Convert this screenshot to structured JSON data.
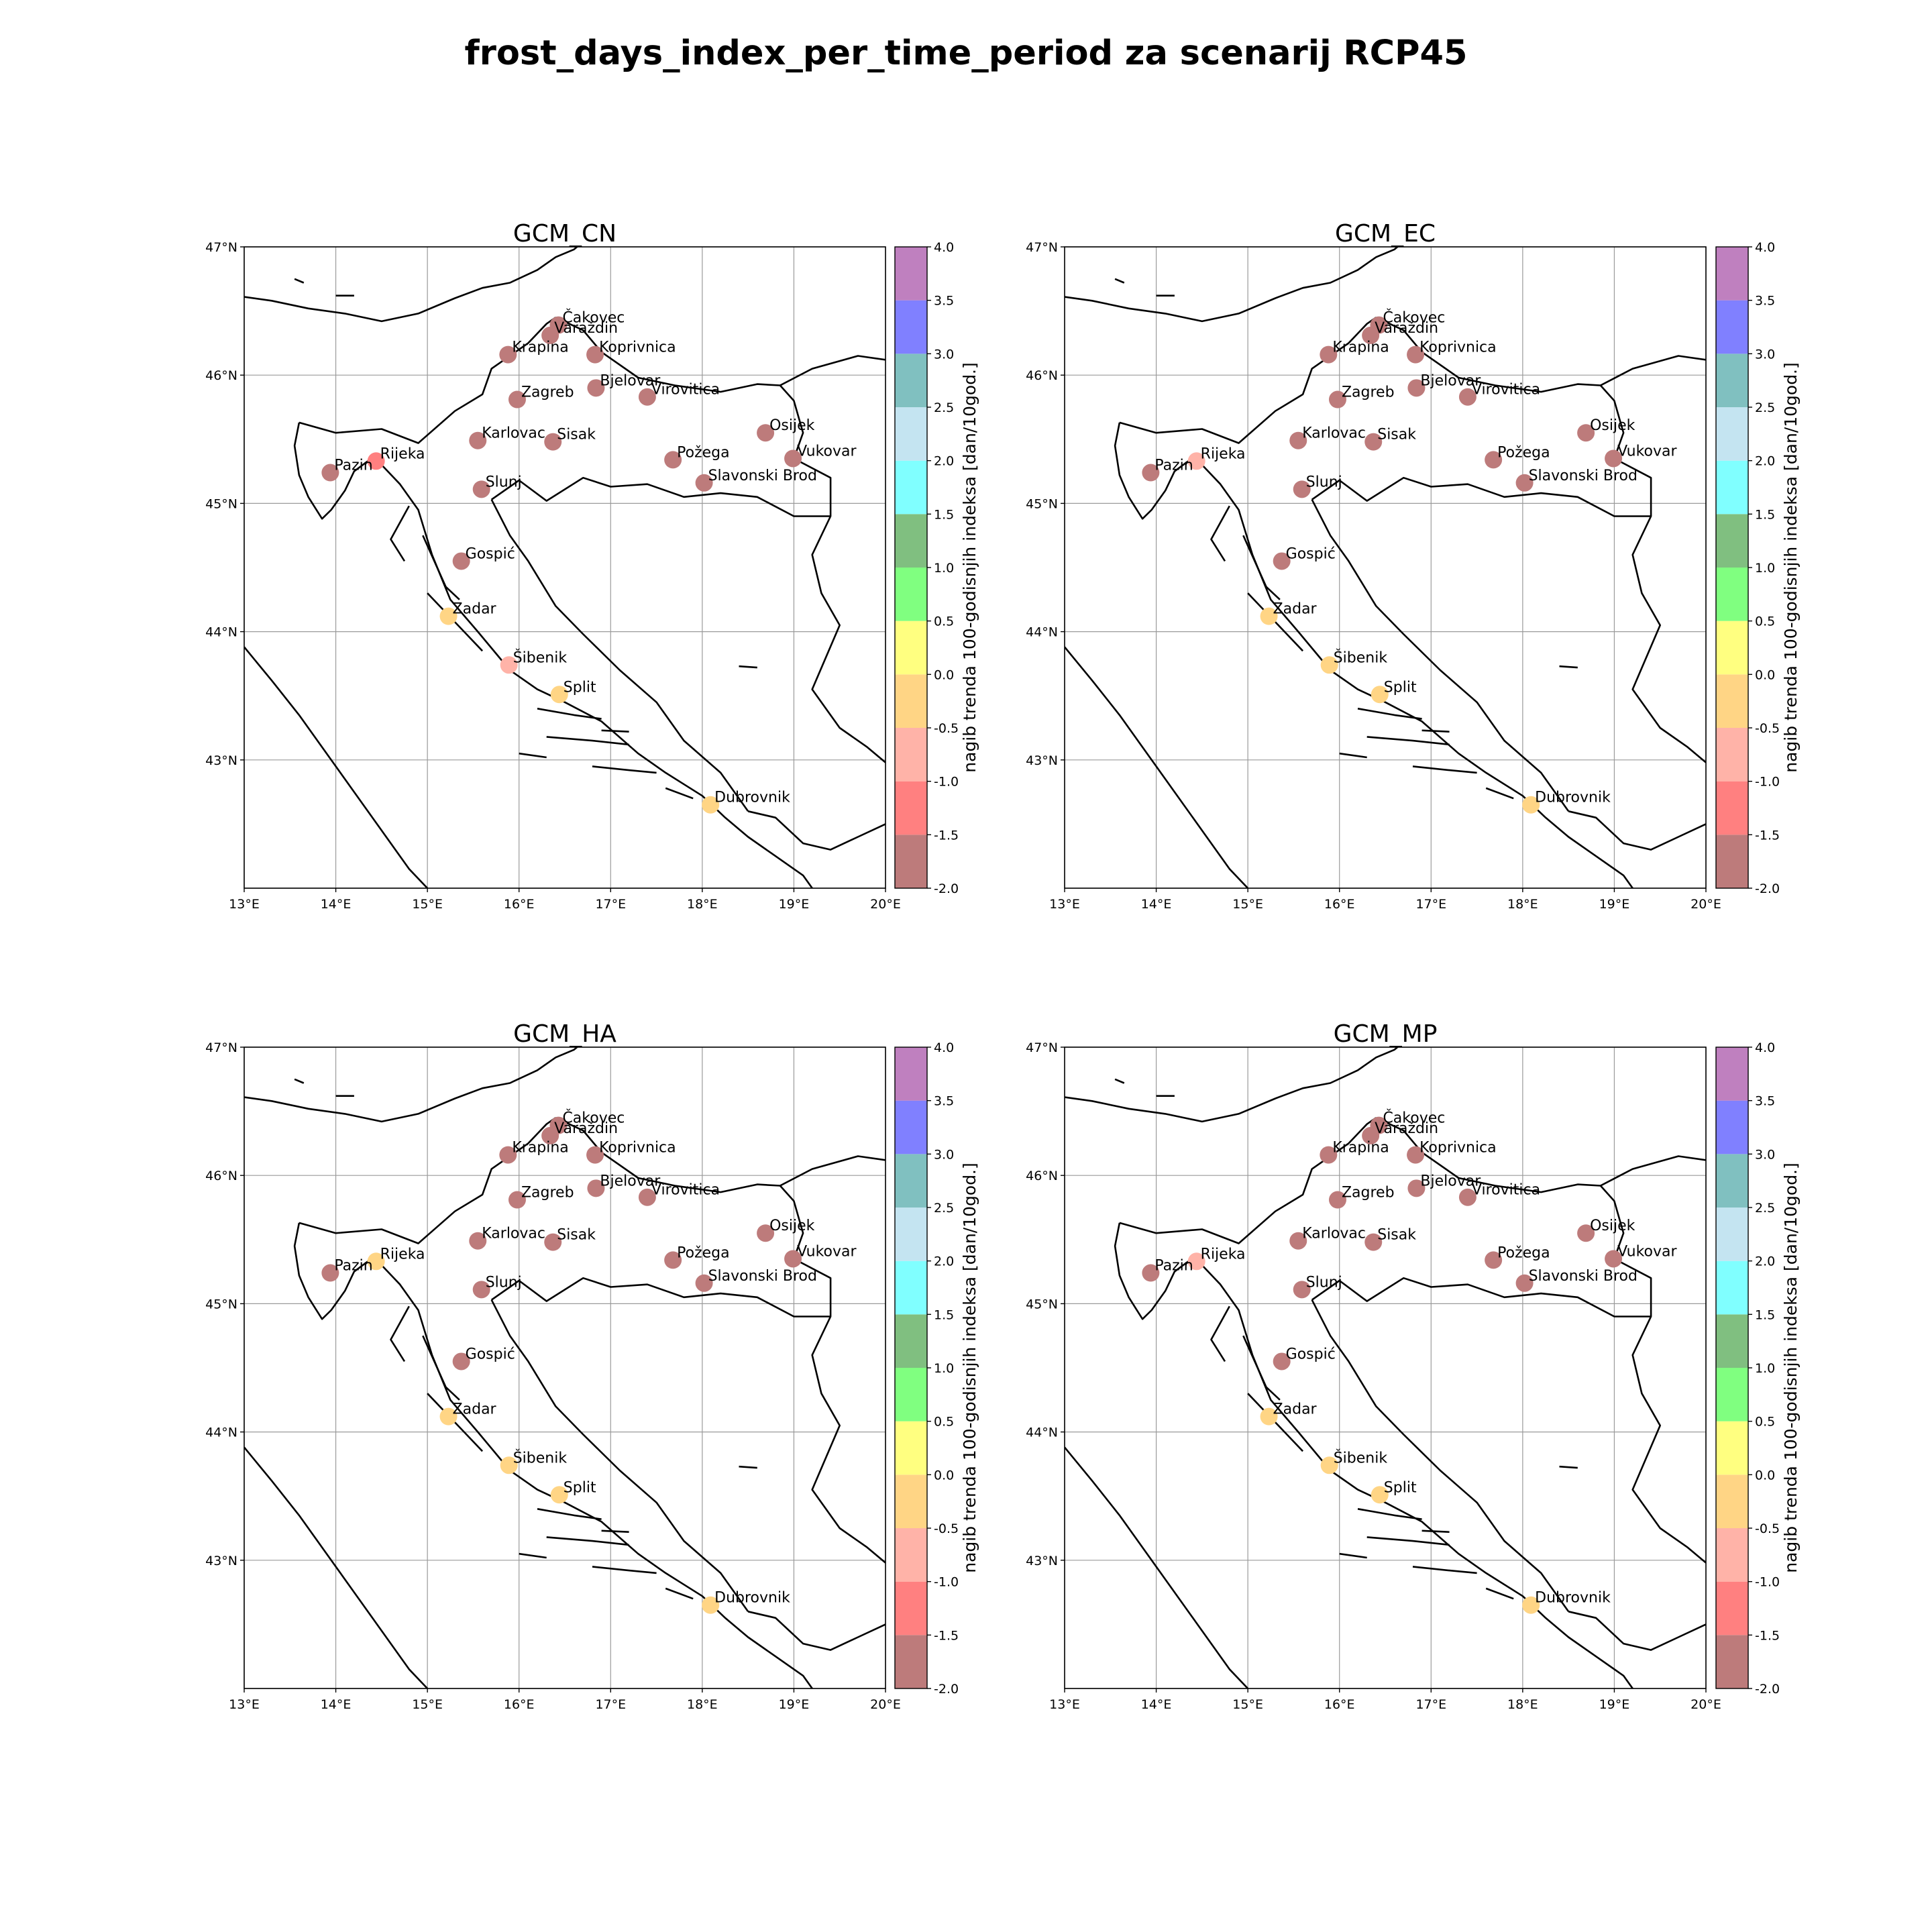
{
  "figure": {
    "title": "frost_days_index_per_time_period za scenarij RCP45"
  },
  "chart_data": [
    {
      "type": "scatter",
      "title": "GCM_CN",
      "xlim": [
        13,
        20
      ],
      "ylim": [
        42,
        47
      ],
      "xticks": [
        "13°E",
        "14°E",
        "15°E",
        "16°E",
        "17°E",
        "18°E",
        "19°E",
        "20°E"
      ],
      "yticks": [
        "43°N",
        "44°N",
        "45°N",
        "46°N",
        "47°N"
      ],
      "colorbar_label": "nagib trenda 100-godisnjih indeksa [dan/10god.]",
      "points": [
        {
          "name": "Čakovec",
          "lon": 16.43,
          "lat": 46.39,
          "value": -1.8
        },
        {
          "name": "Varaždin",
          "lon": 16.34,
          "lat": 46.31,
          "value": -1.8
        },
        {
          "name": "Krapina",
          "lon": 15.88,
          "lat": 46.16,
          "value": -1.8
        },
        {
          "name": "Koprivnica",
          "lon": 16.83,
          "lat": 46.16,
          "value": -1.8
        },
        {
          "name": "Bjelovar",
          "lon": 16.84,
          "lat": 45.9,
          "value": -1.8
        },
        {
          "name": "Virovitica",
          "lon": 17.4,
          "lat": 45.83,
          "value": -1.8
        },
        {
          "name": "Zagreb",
          "lon": 15.98,
          "lat": 45.81,
          "value": -1.8
        },
        {
          "name": "Osijek",
          "lon": 18.69,
          "lat": 45.55,
          "value": -1.8
        },
        {
          "name": "Karlovac",
          "lon": 15.55,
          "lat": 45.49,
          "value": -1.8
        },
        {
          "name": "Sisak",
          "lon": 16.37,
          "lat": 45.48,
          "value": -1.8
        },
        {
          "name": "Vukovar",
          "lon": 18.99,
          "lat": 45.35,
          "value": -1.8
        },
        {
          "name": "Požega",
          "lon": 17.68,
          "lat": 45.34,
          "value": -1.8
        },
        {
          "name": "Rijeka",
          "lon": 14.44,
          "lat": 45.33,
          "value": -1.2
        },
        {
          "name": "Pazin",
          "lon": 13.94,
          "lat": 45.24,
          "value": -1.8
        },
        {
          "name": "Slavonski Brod",
          "lon": 18.02,
          "lat": 45.16,
          "value": -1.8
        },
        {
          "name": "Slunj",
          "lon": 15.59,
          "lat": 45.11,
          "value": -1.8
        },
        {
          "name": "Gospić",
          "lon": 15.37,
          "lat": 44.55,
          "value": -1.8
        },
        {
          "name": "Zadar",
          "lon": 15.23,
          "lat": 44.12,
          "value": -0.2
        },
        {
          "name": "Šibenik",
          "lon": 15.89,
          "lat": 43.74,
          "value": -0.7
        },
        {
          "name": "Split",
          "lon": 16.44,
          "lat": 43.51,
          "value": -0.2
        },
        {
          "name": "Dubrovnik",
          "lon": 18.09,
          "lat": 42.65,
          "value": -0.2
        }
      ]
    },
    {
      "type": "scatter",
      "title": "GCM_EC",
      "xlim": [
        13,
        20
      ],
      "ylim": [
        42,
        47
      ],
      "xticks": [
        "13°E",
        "14°E",
        "15°E",
        "16°E",
        "17°E",
        "18°E",
        "19°E",
        "20°E"
      ],
      "yticks": [
        "43°N",
        "44°N",
        "45°N",
        "46°N",
        "47°N"
      ],
      "colorbar_label": "nagib trenda 100-godisnjih indeksa [dan/10god.]",
      "points": [
        {
          "name": "Čakovec",
          "lon": 16.43,
          "lat": 46.39,
          "value": -1.8
        },
        {
          "name": "Varaždin",
          "lon": 16.34,
          "lat": 46.31,
          "value": -1.8
        },
        {
          "name": "Krapina",
          "lon": 15.88,
          "lat": 46.16,
          "value": -1.8
        },
        {
          "name": "Koprivnica",
          "lon": 16.83,
          "lat": 46.16,
          "value": -1.8
        },
        {
          "name": "Bjelovar",
          "lon": 16.84,
          "lat": 45.9,
          "value": -1.8
        },
        {
          "name": "Virovitica",
          "lon": 17.4,
          "lat": 45.83,
          "value": -1.8
        },
        {
          "name": "Zagreb",
          "lon": 15.98,
          "lat": 45.81,
          "value": -1.8
        },
        {
          "name": "Osijek",
          "lon": 18.69,
          "lat": 45.55,
          "value": -1.8
        },
        {
          "name": "Karlovac",
          "lon": 15.55,
          "lat": 45.49,
          "value": -1.8
        },
        {
          "name": "Sisak",
          "lon": 16.37,
          "lat": 45.48,
          "value": -1.8
        },
        {
          "name": "Vukovar",
          "lon": 18.99,
          "lat": 45.35,
          "value": -1.8
        },
        {
          "name": "Požega",
          "lon": 17.68,
          "lat": 45.34,
          "value": -1.8
        },
        {
          "name": "Rijeka",
          "lon": 14.44,
          "lat": 45.33,
          "value": -0.7
        },
        {
          "name": "Pazin",
          "lon": 13.94,
          "lat": 45.24,
          "value": -1.8
        },
        {
          "name": "Slavonski Brod",
          "lon": 18.02,
          "lat": 45.16,
          "value": -1.8
        },
        {
          "name": "Slunj",
          "lon": 15.59,
          "lat": 45.11,
          "value": -1.8
        },
        {
          "name": "Gospić",
          "lon": 15.37,
          "lat": 44.55,
          "value": -1.8
        },
        {
          "name": "Zadar",
          "lon": 15.23,
          "lat": 44.12,
          "value": -0.2
        },
        {
          "name": "Šibenik",
          "lon": 15.89,
          "lat": 43.74,
          "value": -0.2
        },
        {
          "name": "Split",
          "lon": 16.44,
          "lat": 43.51,
          "value": -0.2
        },
        {
          "name": "Dubrovnik",
          "lon": 18.09,
          "lat": 42.65,
          "value": -0.2
        }
      ]
    },
    {
      "type": "scatter",
      "title": "GCM_HA",
      "xlim": [
        13,
        20
      ],
      "ylim": [
        42,
        47
      ],
      "xticks": [
        "13°E",
        "14°E",
        "15°E",
        "16°E",
        "17°E",
        "18°E",
        "19°E",
        "20°E"
      ],
      "yticks": [
        "43°N",
        "44°N",
        "45°N",
        "46°N",
        "47°N"
      ],
      "colorbar_label": "nagib trenda 100-godisnjih indeksa [dan/10god.]",
      "points": [
        {
          "name": "Čakovec",
          "lon": 16.43,
          "lat": 46.39,
          "value": -1.8
        },
        {
          "name": "Varaždin",
          "lon": 16.34,
          "lat": 46.31,
          "value": -1.8
        },
        {
          "name": "Krapina",
          "lon": 15.88,
          "lat": 46.16,
          "value": -1.8
        },
        {
          "name": "Koprivnica",
          "lon": 16.83,
          "lat": 46.16,
          "value": -1.8
        },
        {
          "name": "Bjelovar",
          "lon": 16.84,
          "lat": 45.9,
          "value": -1.8
        },
        {
          "name": "Virovitica",
          "lon": 17.4,
          "lat": 45.83,
          "value": -1.8
        },
        {
          "name": "Zagreb",
          "lon": 15.98,
          "lat": 45.81,
          "value": -1.8
        },
        {
          "name": "Osijek",
          "lon": 18.69,
          "lat": 45.55,
          "value": -1.8
        },
        {
          "name": "Karlovac",
          "lon": 15.55,
          "lat": 45.49,
          "value": -1.8
        },
        {
          "name": "Sisak",
          "lon": 16.37,
          "lat": 45.48,
          "value": -1.8
        },
        {
          "name": "Vukovar",
          "lon": 18.99,
          "lat": 45.35,
          "value": -1.8
        },
        {
          "name": "Požega",
          "lon": 17.68,
          "lat": 45.34,
          "value": -1.8
        },
        {
          "name": "Rijeka",
          "lon": 14.44,
          "lat": 45.33,
          "value": -0.2
        },
        {
          "name": "Pazin",
          "lon": 13.94,
          "lat": 45.24,
          "value": -1.8
        },
        {
          "name": "Slavonski Brod",
          "lon": 18.02,
          "lat": 45.16,
          "value": -1.8
        },
        {
          "name": "Slunj",
          "lon": 15.59,
          "lat": 45.11,
          "value": -1.8
        },
        {
          "name": "Gospić",
          "lon": 15.37,
          "lat": 44.55,
          "value": -1.8
        },
        {
          "name": "Zadar",
          "lon": 15.23,
          "lat": 44.12,
          "value": -0.2
        },
        {
          "name": "Šibenik",
          "lon": 15.89,
          "lat": 43.74,
          "value": -0.2
        },
        {
          "name": "Split",
          "lon": 16.44,
          "lat": 43.51,
          "value": -0.2
        },
        {
          "name": "Dubrovnik",
          "lon": 18.09,
          "lat": 42.65,
          "value": -0.2
        }
      ]
    },
    {
      "type": "scatter",
      "title": "GCM_MP",
      "xlim": [
        13,
        20
      ],
      "ylim": [
        42,
        47
      ],
      "xticks": [
        "13°E",
        "14°E",
        "15°E",
        "16°E",
        "17°E",
        "18°E",
        "19°E",
        "20°E"
      ],
      "yticks": [
        "43°N",
        "44°N",
        "45°N",
        "46°N",
        "47°N"
      ],
      "colorbar_label": "nagib trenda 100-godisnjih indeksa [dan/10god.]",
      "points": [
        {
          "name": "Čakovec",
          "lon": 16.43,
          "lat": 46.39,
          "value": -1.8
        },
        {
          "name": "Varaždin",
          "lon": 16.34,
          "lat": 46.31,
          "value": -1.8
        },
        {
          "name": "Krapina",
          "lon": 15.88,
          "lat": 46.16,
          "value": -1.8
        },
        {
          "name": "Koprivnica",
          "lon": 16.83,
          "lat": 46.16,
          "value": -1.8
        },
        {
          "name": "Bjelovar",
          "lon": 16.84,
          "lat": 45.9,
          "value": -1.8
        },
        {
          "name": "Virovitica",
          "lon": 17.4,
          "lat": 45.83,
          "value": -1.8
        },
        {
          "name": "Zagreb",
          "lon": 15.98,
          "lat": 45.81,
          "value": -1.8
        },
        {
          "name": "Osijek",
          "lon": 18.69,
          "lat": 45.55,
          "value": -1.8
        },
        {
          "name": "Karlovac",
          "lon": 15.55,
          "lat": 45.49,
          "value": -1.8
        },
        {
          "name": "Sisak",
          "lon": 16.37,
          "lat": 45.48,
          "value": -1.8
        },
        {
          "name": "Vukovar",
          "lon": 18.99,
          "lat": 45.35,
          "value": -1.8
        },
        {
          "name": "Požega",
          "lon": 17.68,
          "lat": 45.34,
          "value": -1.8
        },
        {
          "name": "Rijeka",
          "lon": 14.44,
          "lat": 45.33,
          "value": -0.7
        },
        {
          "name": "Pazin",
          "lon": 13.94,
          "lat": 45.24,
          "value": -1.8
        },
        {
          "name": "Slavonski Brod",
          "lon": 18.02,
          "lat": 45.16,
          "value": -1.8
        },
        {
          "name": "Slunj",
          "lon": 15.59,
          "lat": 45.11,
          "value": -1.8
        },
        {
          "name": "Gospić",
          "lon": 15.37,
          "lat": 44.55,
          "value": -1.8
        },
        {
          "name": "Zadar",
          "lon": 15.23,
          "lat": 44.12,
          "value": -0.2
        },
        {
          "name": "Šibenik",
          "lon": 15.89,
          "lat": 43.74,
          "value": -0.2
        },
        {
          "name": "Split",
          "lon": 16.44,
          "lat": 43.51,
          "value": -0.2
        },
        {
          "name": "Dubrovnik",
          "lon": 18.09,
          "lat": 42.65,
          "value": -0.2
        }
      ]
    }
  ],
  "colorbar": {
    "boundaries": [
      -2.0,
      -1.5,
      -1.0,
      -0.5,
      0.0,
      0.5,
      1.0,
      1.5,
      2.0,
      2.5,
      3.0,
      3.5,
      4.0
    ],
    "tick_labels": [
      "-2.0",
      "-1.5",
      "-1.0",
      "-0.5",
      "0.0",
      "0.5",
      "1.0",
      "1.5",
      "2.0",
      "2.5",
      "3.0",
      "3.5",
      "4.0"
    ],
    "colors": [
      "#bd7b7b",
      "#ff8080",
      "#ffb3a8",
      "#ffd585",
      "#ffff80",
      "#80ff80",
      "#80bf80",
      "#80ffff",
      "#c4e4f1",
      "#80c0c0",
      "#8080ff",
      "#bf80bf"
    ],
    "point_alpha": 1.0
  },
  "map": {
    "coast_color": "#000000",
    "grid_color": "#9a9a9a"
  }
}
